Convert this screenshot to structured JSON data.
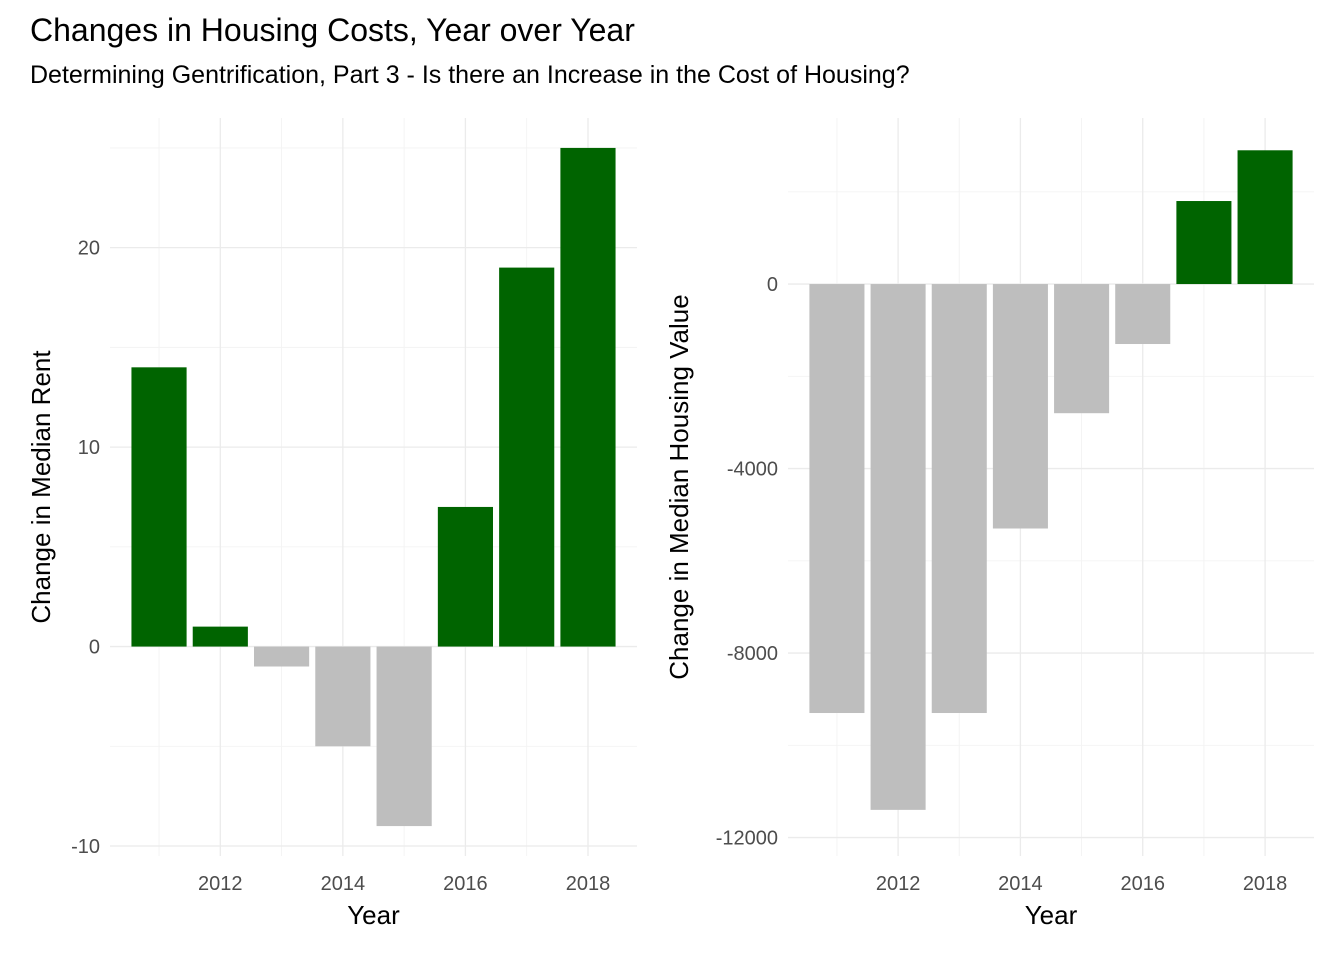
{
  "title": "Changes in Housing Costs, Year over Year",
  "subtitle": "Determining Gentrification, Part 3 - Is there an Increase in the Cost of Housing?",
  "colors": {
    "positive": "#006400",
    "negative": "#bebebe",
    "grid": "#ebebeb",
    "tick_text": "#4d4d4d"
  },
  "chart_data": [
    {
      "type": "bar",
      "xlabel": "Year",
      "ylabel": "Change in Median Rent",
      "x": [
        2011,
        2012,
        2013,
        2014,
        2015,
        2016,
        2017,
        2018
      ],
      "values": [
        14,
        1,
        -1,
        -5,
        -9,
        7,
        19,
        25
      ],
      "xticks": [
        2012,
        2014,
        2016,
        2018
      ],
      "yticks": [
        -10,
        0,
        10,
        20
      ],
      "ylim": [
        -10.5,
        26.5
      ],
      "fill_rule": "green when value > 0, grey otherwise"
    },
    {
      "type": "bar",
      "xlabel": "Year",
      "ylabel": "Change in Median Housing Value",
      "x": [
        2011,
        2012,
        2013,
        2014,
        2015,
        2016,
        2017,
        2018
      ],
      "values": [
        -9300,
        -11400,
        -9300,
        -5300,
        -2800,
        -1300,
        1800,
        2900
      ],
      "xticks": [
        2012,
        2014,
        2016,
        2018
      ],
      "yticks": [
        -12000,
        -8000,
        -4000,
        0
      ],
      "ylim": [
        -12400,
        3600
      ],
      "fill_rule": "green when value > 0, grey otherwise"
    }
  ]
}
